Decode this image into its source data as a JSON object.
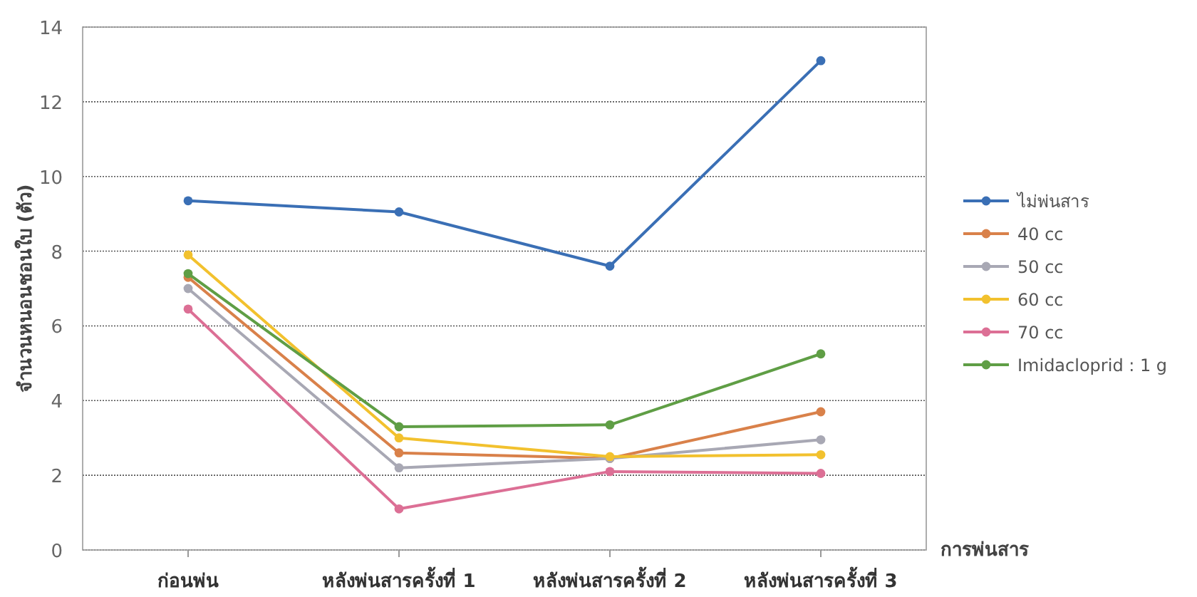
{
  "chart_data": {
    "type": "line",
    "xlabel": "การพ่นสาร",
    "ylabel": "จำนวนหนอนชอนใบ (ตัว)",
    "categories": [
      "ก่อนพ่น",
      "หลังพ่นสารครั้งที่ 1",
      "หลังพ่นสารครั้งที่ 2",
      "หลังพ่นสารครั้งที่ 3"
    ],
    "series": [
      {
        "name": "ไม่พ่นสาร",
        "color": "#3a6fb5",
        "values": [
          9.35,
          9.05,
          7.6,
          13.1
        ]
      },
      {
        "name": "40 cc",
        "color": "#d9814a",
        "values": [
          7.3,
          2.6,
          2.45,
          3.7
        ]
      },
      {
        "name": "50 cc",
        "color": "#a8a8b4",
        "values": [
          7.0,
          2.2,
          2.45,
          2.95
        ]
      },
      {
        "name": "60 cc",
        "color": "#f2c12e",
        "values": [
          7.9,
          3.0,
          2.5,
          2.55
        ]
      },
      {
        "name": "70 cc",
        "color": "#dc6f95",
        "values": [
          6.45,
          1.1,
          2.1,
          2.05
        ]
      },
      {
        "name": "Imidacloprid : 1 g",
        "color": "#5f9e45",
        "values": [
          7.4,
          3.3,
          3.35,
          5.25
        ]
      }
    ],
    "ylim": [
      0,
      14
    ],
    "yticks": [
      0,
      2,
      4,
      6,
      8,
      10,
      12,
      14
    ],
    "grid": "y",
    "legend": "right",
    "marker": "circle",
    "line_style": "solid"
  }
}
